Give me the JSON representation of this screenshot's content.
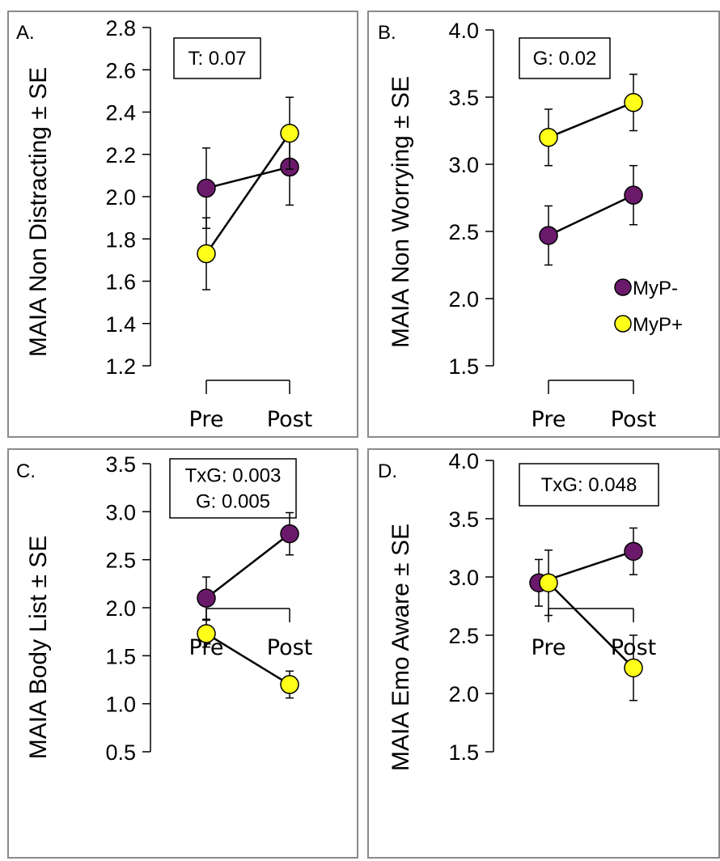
{
  "colors": {
    "myp_minus": "#6b1a6b",
    "myp_plus": "#ffff1a"
  },
  "legend": [
    {
      "name": "MyP-",
      "color": "#6b1a6b"
    },
    {
      "name": "MyP+",
      "color": "#ffff1a"
    }
  ],
  "chart_data": [
    {
      "type": "line",
      "panel_label": "A.",
      "ylabel": "MAIA Non Distracting ± SE",
      "annotation": [
        "T: 0.07"
      ],
      "categories": [
        "Pre",
        "Post"
      ],
      "ylim": [
        1.2,
        2.8
      ],
      "yticks": [
        1.2,
        1.4,
        1.6,
        1.8,
        2.0,
        2.2,
        2.4,
        2.6,
        2.8
      ],
      "ytick_labels": [
        "1.2",
        "1.4",
        "1.6",
        "1.8",
        "2.0",
        "2.2",
        "2.4",
        "2.6",
        "2.8"
      ],
      "series": [
        {
          "name": "MyP-",
          "values": [
            2.04,
            2.14
          ],
          "se": [
            0.19,
            0.18
          ],
          "color": "#6b1a6b"
        },
        {
          "name": "MyP+",
          "values": [
            1.73,
            2.3
          ],
          "se": [
            0.17,
            0.17
          ],
          "color": "#ffff1a"
        }
      ]
    },
    {
      "type": "line",
      "panel_label": "B.",
      "ylabel": "MAIA Non Worrying ± SE",
      "annotation": [
        "G: 0.02"
      ],
      "categories": [
        "Pre",
        "Post"
      ],
      "ylim": [
        1.5,
        4.0
      ],
      "yticks": [
        1.5,
        2.0,
        2.5,
        3.0,
        3.5,
        4.0
      ],
      "ytick_labels": [
        "1.5",
        "2.0",
        "2.5",
        "3.0",
        "3.5",
        "4.0"
      ],
      "show_legend": true,
      "legend_position": "right",
      "series": [
        {
          "name": "MyP-",
          "values": [
            2.47,
            2.77
          ],
          "se": [
            0.22,
            0.22
          ],
          "color": "#6b1a6b"
        },
        {
          "name": "MyP+",
          "values": [
            3.2,
            3.46
          ],
          "se": [
            0.21,
            0.21
          ],
          "color": "#ffff1a"
        }
      ]
    },
    {
      "type": "line",
      "panel_label": "C.",
      "ylabel": "MAIA Body List ± SE",
      "annotation": [
        "TxG: 0.003",
        "G: 0.005"
      ],
      "categories": [
        "Pre",
        "Post"
      ],
      "ylim": [
        0.5,
        3.5
      ],
      "yticks": [
        0.5,
        1.0,
        1.5,
        2.0,
        2.5,
        3.0,
        3.5
      ],
      "ytick_labels": [
        "0.5",
        "1.0",
        "1.5",
        "2.0",
        "2.5",
        "3.0",
        "3.5"
      ],
      "series": [
        {
          "name": "MyP-",
          "values": [
            2.1,
            2.77
          ],
          "se": [
            0.22,
            0.22
          ],
          "color": "#6b1a6b"
        },
        {
          "name": "MyP+",
          "values": [
            1.73,
            1.2
          ],
          "se": [
            0.14,
            0.14
          ],
          "color": "#ffff1a"
        }
      ]
    },
    {
      "type": "line",
      "panel_label": "D.",
      "ylabel": "MAIA Emo Aware ± SE",
      "annotation": [
        "TxG: 0.048"
      ],
      "categories": [
        "Pre",
        "Post"
      ],
      "ylim": [
        1.5,
        4.0
      ],
      "yticks": [
        1.5,
        2.0,
        2.5,
        3.0,
        3.5,
        4.0
      ],
      "ytick_labels": [
        "1.5",
        "2.0",
        "2.5",
        "3.0",
        "3.5",
        "4.0"
      ],
      "series": [
        {
          "name": "MyP-",
          "values": [
            2.95,
            3.22
          ],
          "se": [
            0.2,
            0.2
          ],
          "color": "#6b1a6b"
        },
        {
          "name": "MyP+",
          "values": [
            2.95,
            2.22
          ],
          "se": [
            0.28,
            0.28
          ],
          "color": "#ffff1a"
        }
      ]
    }
  ]
}
